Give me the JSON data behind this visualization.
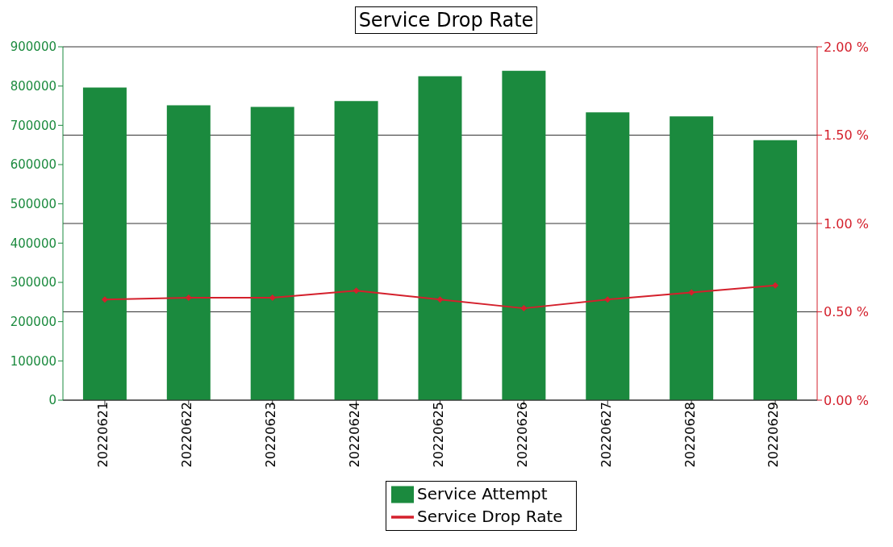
{
  "chart_data": {
    "type": "bar",
    "title": "Service Drop Rate",
    "categories": [
      "20220621",
      "20220622",
      "20220623",
      "20220624",
      "20220625",
      "20220626",
      "20220627",
      "20220628",
      "20220629"
    ],
    "series": [
      {
        "name": "Service Attempt",
        "color": "#1b8a3e",
        "values": [
          796000,
          751000,
          747000,
          762000,
          825000,
          839000,
          733000,
          723000,
          662000
        ]
      },
      {
        "name": "Service Drop Rate",
        "type": "line",
        "axis": "y2",
        "color": "#d4202c",
        "marker": "diamond",
        "values": [
          0.57,
          0.58,
          0.58,
          0.62,
          0.57,
          0.52,
          0.57,
          0.61,
          0.65
        ]
      }
    ],
    "ylim": [
      0,
      900000
    ],
    "yticks": [
      0,
      100000,
      200000,
      300000,
      400000,
      500000,
      600000,
      700000,
      800000,
      900000
    ],
    "y2lim": [
      0,
      2
    ],
    "y2ticks": [
      {
        "value": 0,
        "label": "0.00 %"
      },
      {
        "value": 0.5,
        "label": "0.50 %"
      },
      {
        "value": 1,
        "label": "1.00 %"
      },
      {
        "value": 1.5,
        "label": "1.50 %"
      },
      {
        "value": 2,
        "label": "2.00 %"
      }
    ],
    "grid": "y2",
    "legend": "bottom"
  }
}
